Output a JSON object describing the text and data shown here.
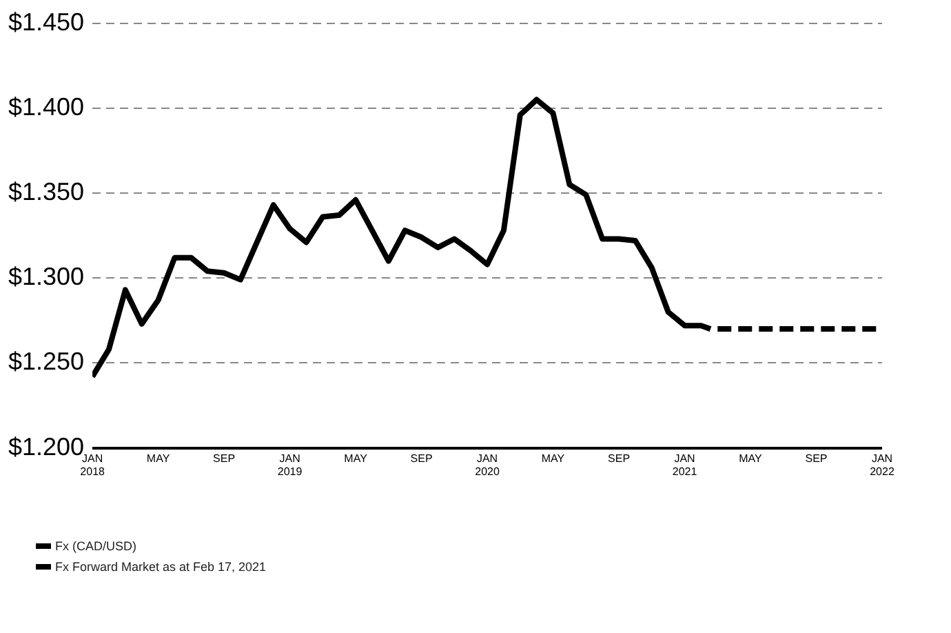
{
  "chart_data": {
    "type": "line",
    "x": [
      "2018-01",
      "2018-02",
      "2018-03",
      "2018-04",
      "2018-05",
      "2018-06",
      "2018-07",
      "2018-08",
      "2018-09",
      "2018-10",
      "2018-11",
      "2018-12",
      "2019-01",
      "2019-02",
      "2019-03",
      "2019-04",
      "2019-05",
      "2019-06",
      "2019-07",
      "2019-08",
      "2019-09",
      "2019-10",
      "2019-11",
      "2019-12",
      "2020-01",
      "2020-02",
      "2020-03",
      "2020-04",
      "2020-05",
      "2020-06",
      "2020-07",
      "2020-08",
      "2020-09",
      "2020-10",
      "2020-11",
      "2020-12",
      "2021-01",
      "2021-02",
      "2021-02-17"
    ],
    "series": [
      {
        "name": "Fx (CAD/USD)",
        "color": "#000000",
        "line_style": "solid",
        "values": [
          1.242,
          1.258,
          1.293,
          1.273,
          1.287,
          1.312,
          1.312,
          1.304,
          1.303,
          1.299,
          1.321,
          1.343,
          1.329,
          1.321,
          1.336,
          1.337,
          1.346,
          1.328,
          1.31,
          1.328,
          1.324,
          1.318,
          1.323,
          1.316,
          1.308,
          1.328,
          1.396,
          1.405,
          1.397,
          1.355,
          1.349,
          1.323,
          1.323,
          1.322,
          1.306,
          1.28,
          1.272,
          1.272,
          1.27
        ]
      },
      {
        "name": "Fx Forward Market as at Feb 17, 2021",
        "color": "#000000",
        "line_style": "dashed",
        "x": [
          "2021-03",
          "2022-01"
        ],
        "values": [
          1.27,
          1.27
        ]
      }
    ],
    "xlim": [
      "2018-01",
      "2022-01"
    ],
    "xticks": [
      {
        "value": "2018-01",
        "label": "JAN 2018"
      },
      {
        "value": "2018-05",
        "label": "MAY"
      },
      {
        "value": "2018-09",
        "label": "SEP"
      },
      {
        "value": "2019-01",
        "label": "JAN 2019"
      },
      {
        "value": "2019-05",
        "label": "MAY"
      },
      {
        "value": "2019-09",
        "label": "SEP"
      },
      {
        "value": "2020-01",
        "label": "JAN 2020"
      },
      {
        "value": "2020-05",
        "label": "MAY"
      },
      {
        "value": "2020-09",
        "label": "SEP"
      },
      {
        "value": "2021-01",
        "label": "JAN 2021"
      },
      {
        "value": "2021-05",
        "label": "MAY"
      },
      {
        "value": "2021-09",
        "label": "SEP"
      },
      {
        "value": "2022-01",
        "label": "JAN 2022"
      }
    ],
    "ylim": [
      1.2,
      1.45
    ],
    "yticks": [
      {
        "value": 1.2,
        "label": "$1.200"
      },
      {
        "value": 1.25,
        "label": "$1.250"
      },
      {
        "value": 1.3,
        "label": "$1.300"
      },
      {
        "value": 1.35,
        "label": "$1.350"
      },
      {
        "value": 1.4,
        "label": "$1.400"
      },
      {
        "value": 1.45,
        "label": "$1.450"
      }
    ],
    "grid": "y",
    "legend": "bottom left",
    "marker": "none"
  }
}
